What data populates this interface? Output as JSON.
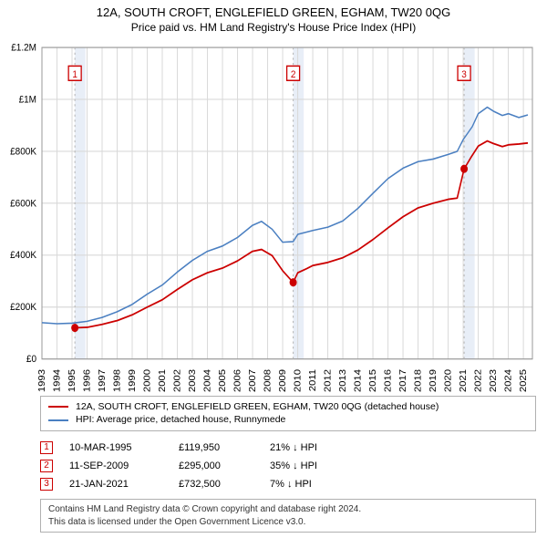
{
  "title": {
    "line1": "12A, SOUTH CROFT, ENGLEFIELD GREEN, EGHAM, TW20 0QG",
    "line2": "Price paid vs. HM Land Registry's House Price Index (HPI)",
    "fontsize_line1": 13,
    "fontsize_line2": 12
  },
  "chart": {
    "type": "line",
    "background_color": "#ffffff",
    "grid_color": "#d9d9d9",
    "x_years": [
      1993,
      1994,
      1995,
      1996,
      1997,
      1998,
      1999,
      2000,
      2001,
      2002,
      2003,
      2004,
      2005,
      2006,
      2007,
      2008,
      2009,
      2010,
      2011,
      2012,
      2013,
      2014,
      2015,
      2016,
      2017,
      2018,
      2019,
      2020,
      2021,
      2022,
      2023,
      2024,
      2025
    ],
    "xlim": [
      1993,
      2025.6
    ],
    "ylim": [
      0,
      1200000
    ],
    "ytick_step": 200000,
    "ytick_labels": [
      "£0",
      "£200K",
      "£400K",
      "£600K",
      "£800K",
      "£1M",
      "£1.2M"
    ],
    "series": [
      {
        "name": "price_paid",
        "color": "#cc0000",
        "width": 1.6,
        "points": [
          [
            1995.2,
            119950
          ],
          [
            1996,
            122000
          ],
          [
            1997,
            133000
          ],
          [
            1998,
            148000
          ],
          [
            1999,
            170000
          ],
          [
            2000,
            200000
          ],
          [
            2001,
            228000
          ],
          [
            2002,
            268000
          ],
          [
            2003,
            305000
          ],
          [
            2004,
            332000
          ],
          [
            2005,
            350000
          ],
          [
            2006,
            378000
          ],
          [
            2007,
            415000
          ],
          [
            2007.6,
            422000
          ],
          [
            2008.3,
            398000
          ],
          [
            2009,
            340000
          ],
          [
            2009.7,
            295000
          ],
          [
            2010,
            332000
          ],
          [
            2010.6,
            348000
          ],
          [
            2011,
            360000
          ],
          [
            2012,
            372000
          ],
          [
            2013,
            390000
          ],
          [
            2014,
            420000
          ],
          [
            2015,
            460000
          ],
          [
            2016,
            505000
          ],
          [
            2017,
            548000
          ],
          [
            2018,
            582000
          ],
          [
            2019,
            600000
          ],
          [
            2020,
            615000
          ],
          [
            2020.6,
            620000
          ],
          [
            2021.06,
            732500
          ],
          [
            2021.5,
            775000
          ],
          [
            2022,
            820000
          ],
          [
            2022.6,
            840000
          ],
          [
            2023,
            830000
          ],
          [
            2023.6,
            818000
          ],
          [
            2024,
            825000
          ],
          [
            2024.7,
            828000
          ],
          [
            2025.3,
            832000
          ]
        ]
      },
      {
        "name": "hpi",
        "color": "#4a7fc1",
        "width": 1.4,
        "points": [
          [
            1993,
            140000
          ],
          [
            1994,
            136000
          ],
          [
            1995,
            138000
          ],
          [
            1996,
            145000
          ],
          [
            1997,
            160000
          ],
          [
            1998,
            182000
          ],
          [
            1999,
            210000
          ],
          [
            2000,
            250000
          ],
          [
            2001,
            285000
          ],
          [
            2002,
            335000
          ],
          [
            2003,
            380000
          ],
          [
            2004,
            415000
          ],
          [
            2005,
            435000
          ],
          [
            2006,
            468000
          ],
          [
            2007,
            515000
          ],
          [
            2007.6,
            530000
          ],
          [
            2008.3,
            500000
          ],
          [
            2009,
            450000
          ],
          [
            2009.7,
            452000
          ],
          [
            2010,
            480000
          ],
          [
            2011,
            495000
          ],
          [
            2012,
            508000
          ],
          [
            2013,
            532000
          ],
          [
            2014,
            580000
          ],
          [
            2015,
            638000
          ],
          [
            2016,
            695000
          ],
          [
            2017,
            735000
          ],
          [
            2018,
            760000
          ],
          [
            2019,
            770000
          ],
          [
            2020,
            788000
          ],
          [
            2020.6,
            800000
          ],
          [
            2021,
            845000
          ],
          [
            2021.6,
            895000
          ],
          [
            2022,
            945000
          ],
          [
            2022.6,
            970000
          ],
          [
            2023,
            955000
          ],
          [
            2023.6,
            938000
          ],
          [
            2024,
            945000
          ],
          [
            2024.7,
            930000
          ],
          [
            2025.3,
            940000
          ]
        ]
      }
    ],
    "sale_markers": [
      {
        "num": "1",
        "year": 1995.19,
        "price": 119950,
        "shade_width_years": 0.7
      },
      {
        "num": "2",
        "year": 2009.7,
        "price": 295000,
        "shade_width_years": 0.7
      },
      {
        "num": "3",
        "year": 2021.06,
        "price": 732500,
        "shade_width_years": 0.7
      }
    ],
    "shade_color": "#e8eef7",
    "marker_dot_color": "#cc0000",
    "marker_box_border": "#cc0000",
    "dotted_line_color": "#b3b3b3"
  },
  "legend": {
    "items": [
      {
        "color": "#cc0000",
        "label": "12A, SOUTH CROFT, ENGLEFIELD GREEN, EGHAM, TW20 0QG (detached house)"
      },
      {
        "color": "#4a7fc1",
        "label": "HPI: Average price, detached house, Runnymede"
      }
    ]
  },
  "sales": [
    {
      "num": "1",
      "date": "10-MAR-1995",
      "price": "£119,950",
      "diff": "21% ↓ HPI"
    },
    {
      "num": "2",
      "date": "11-SEP-2009",
      "price": "£295,000",
      "diff": "35% ↓ HPI"
    },
    {
      "num": "3",
      "date": "21-JAN-2021",
      "price": "£732,500",
      "diff": "7% ↓ HPI"
    }
  ],
  "footer": {
    "line1": "Contains HM Land Registry data © Crown copyright and database right 2024.",
    "line2": "This data is licensed under the Open Government Licence v3.0."
  }
}
